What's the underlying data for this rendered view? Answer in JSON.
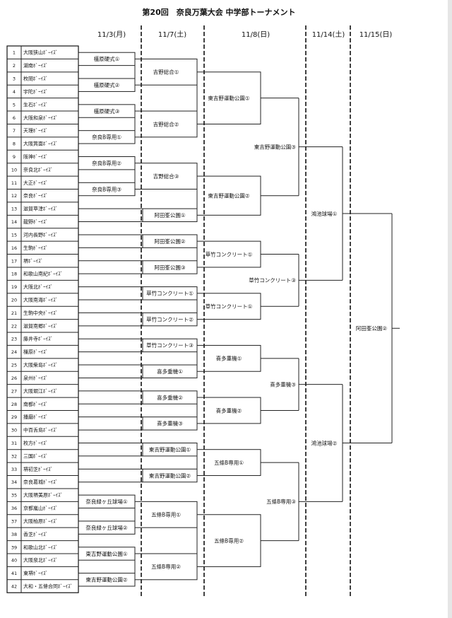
{
  "title": "第20回　奈良万葉大会 中学部トーナメント",
  "dates": [
    "11/3(月)",
    "11/7(土)",
    "11/8(日)",
    "11/14(土)",
    "11/15(日)"
  ],
  "teams": [
    {
      "no": "1",
      "name": "大阪狭山ﾎﾞｰｲｽﾞ"
    },
    {
      "no": "2",
      "name": "湖南ﾎﾞｰｲｽﾞ"
    },
    {
      "no": "3",
      "name": "枚岡ﾎﾞｰｲｽﾞ"
    },
    {
      "no": "4",
      "name": "宇陀ﾎﾞｰｲｽﾞ"
    },
    {
      "no": "5",
      "name": "生石ﾎﾞｰｲｽﾞ"
    },
    {
      "no": "6",
      "name": "大阪和泉ﾎﾞｰｲｽﾞ"
    },
    {
      "no": "7",
      "name": "天理ﾎﾞｰｲｽﾞ"
    },
    {
      "no": "8",
      "name": "大阪箕面ﾎﾞｰｲｽﾞ"
    },
    {
      "no": "9",
      "name": "阪神ﾎﾞｰｲｽﾞ"
    },
    {
      "no": "10",
      "name": "奈良北ﾎﾞｰｲｽﾞ"
    },
    {
      "no": "11",
      "name": "大正ﾎﾞｰｲｽﾞ"
    },
    {
      "no": "12",
      "name": "奈良ﾎﾞｰｲｽﾞ"
    },
    {
      "no": "13",
      "name": "滋賀草津ﾎﾞｰｲｽﾞ"
    },
    {
      "no": "14",
      "name": "龍野ﾎﾞｰｲｽﾞ"
    },
    {
      "no": "15",
      "name": "河内長野ﾎﾞｰｲｽﾞ"
    },
    {
      "no": "16",
      "name": "生駒ﾎﾞｰｲｽﾞ"
    },
    {
      "no": "17",
      "name": "堺ﾎﾞｰｲｽﾞ"
    },
    {
      "no": "18",
      "name": "和歌山南紀ﾎﾞｰｲｽﾞ"
    },
    {
      "no": "19",
      "name": "大阪北ﾎﾞｰｲｽﾞ"
    },
    {
      "no": "20",
      "name": "大阪南海ﾎﾞｰｲｽﾞ"
    },
    {
      "no": "21",
      "name": "生駒中央ﾎﾞｰｲｽﾞ"
    },
    {
      "no": "22",
      "name": "滋賀南郷ﾎﾞｰｲｽﾞ"
    },
    {
      "no": "23",
      "name": "藤井寺ﾎﾞｰｲｽﾞ"
    },
    {
      "no": "24",
      "name": "橿原ﾎﾞｰｲｽﾞ"
    },
    {
      "no": "25",
      "name": "大阪柴島ﾎﾞｰｲｽﾞ"
    },
    {
      "no": "26",
      "name": "泉州ﾎﾞｰｲｽﾞ"
    },
    {
      "no": "27",
      "name": "大阪堀江ﾎﾞｰｲｽﾞ"
    },
    {
      "no": "28",
      "name": "南都ﾎﾞｰｲｽﾞ"
    },
    {
      "no": "29",
      "name": "播磨ﾎﾞｰｲｽﾞ"
    },
    {
      "no": "30",
      "name": "中百舌鳥ﾎﾞｰｲｽﾞ"
    },
    {
      "no": "31",
      "name": "枚方ﾎﾞｰｲｽﾞ"
    },
    {
      "no": "32",
      "name": "三国ﾎﾞｰｲｽﾞ"
    },
    {
      "no": "33",
      "name": "堺初芝ﾎﾞｰｲｽﾞ"
    },
    {
      "no": "34",
      "name": "奈良葛城ﾎﾞｰｲｽﾞ"
    },
    {
      "no": "35",
      "name": "大阪堺美原ﾎﾞｰｲｽﾞ"
    },
    {
      "no": "36",
      "name": "京都嵐山ﾎﾞｰｲｽﾞ"
    },
    {
      "no": "37",
      "name": "大阪柏原ﾎﾞｰｲｽﾞ"
    },
    {
      "no": "38",
      "name": "香芝ﾎﾞｰｲｽﾞ"
    },
    {
      "no": "39",
      "name": "和歌山北ﾎﾞｰｲｽﾞ"
    },
    {
      "no": "40",
      "name": "大阪泉北ﾎﾞｰｲｽﾞ"
    },
    {
      "no": "41",
      "name": "東堺ﾎﾞｰｲｽﾞ"
    },
    {
      "no": "42",
      "name": "大和・五條合同ﾎﾞｰｲｽﾞ"
    }
  ],
  "matches": [
    {
      "id": "a1",
      "round": 1,
      "label": "橿原硬式①",
      "from": [
        1,
        2
      ]
    },
    {
      "id": "a2",
      "round": 1,
      "label": "橿原硬式②",
      "from": [
        3,
        4
      ]
    },
    {
      "id": "a3",
      "round": 1,
      "label": "橿原硬式③",
      "from": [
        5,
        6
      ]
    },
    {
      "id": "a4",
      "round": 1,
      "label": "奈良B専用①",
      "from": [
        7,
        8
      ]
    },
    {
      "id": "a5",
      "round": 1,
      "label": "奈良B専用②",
      "from": [
        9,
        10
      ]
    },
    {
      "id": "a6",
      "round": 1,
      "label": "奈良B専用③",
      "from": [
        11,
        12
      ]
    },
    {
      "id": "a7",
      "round": 1,
      "label": "奈良緑ヶ丘球場①",
      "from": [
        35,
        36
      ]
    },
    {
      "id": "a8",
      "round": 1,
      "label": "奈良緑ヶ丘球場②",
      "from": [
        37,
        38
      ]
    },
    {
      "id": "a9",
      "round": 1,
      "label": "東吉野運動公園①",
      "from": [
        39,
        40
      ]
    },
    {
      "id": "a10",
      "round": 1,
      "label": "東吉野運動公園②",
      "from": [
        41,
        42
      ]
    },
    {
      "id": "b1",
      "round": 2,
      "label": "吉野総合①",
      "from": [
        "a1",
        "a2"
      ]
    },
    {
      "id": "b2",
      "round": 2,
      "label": "吉野総合②",
      "from": [
        "a3",
        "a4"
      ]
    },
    {
      "id": "b3",
      "round": 2,
      "label": "吉野総合③",
      "from": [
        "a5",
        "a6"
      ]
    },
    {
      "id": "b4",
      "round": 2,
      "label": "阿田峯公園①",
      "from": [
        13,
        14
      ]
    },
    {
      "id": "b5",
      "round": 2,
      "label": "阿田峯公園②",
      "from": [
        15,
        16
      ]
    },
    {
      "id": "b6",
      "round": 2,
      "label": "阿田峯公園③",
      "from": [
        17,
        18
      ]
    },
    {
      "id": "b7",
      "round": 2,
      "label": "草竹コンクリート①",
      "from": [
        19,
        20
      ]
    },
    {
      "id": "b8",
      "round": 2,
      "label": "草竹コンクリート②",
      "from": [
        21,
        22
      ]
    },
    {
      "id": "b9",
      "round": 2,
      "label": "草竹コンクリート③",
      "from": [
        23,
        24
      ]
    },
    {
      "id": "b10",
      "round": 2,
      "label": "喜多重機①",
      "from": [
        25,
        26
      ]
    },
    {
      "id": "b11",
      "round": 2,
      "label": "喜多重機②",
      "from": [
        27,
        28
      ]
    },
    {
      "id": "b12",
      "round": 2,
      "label": "喜多重機③",
      "from": [
        29,
        30
      ]
    },
    {
      "id": "b13",
      "round": 2,
      "label": "東吉野運動公園①",
      "from": [
        31,
        32
      ]
    },
    {
      "id": "b14",
      "round": 2,
      "label": "東吉野運動公園②",
      "from": [
        33,
        34
      ]
    },
    {
      "id": "b15",
      "round": 2,
      "label": "五條B専用①",
      "from": [
        "a7",
        "a8"
      ]
    },
    {
      "id": "b16",
      "round": 2,
      "label": "五條B専用②",
      "from": [
        "a9",
        "a10"
      ]
    },
    {
      "id": "c1",
      "round": 3,
      "label": "東吉野運動公園①",
      "from": [
        "b1",
        "b2"
      ]
    },
    {
      "id": "c2",
      "round": 3,
      "label": "東吉野運動公園②",
      "from": [
        "b3",
        "b4"
      ]
    },
    {
      "id": "c3",
      "round": 3,
      "label": "草竹コンクリート①",
      "from": [
        "b5",
        "b6"
      ]
    },
    {
      "id": "c4",
      "round": 3,
      "label": "草竹コンクリート①",
      "from": [
        "b7",
        "b8"
      ]
    },
    {
      "id": "c5",
      "round": 3,
      "label": "喜多重機①",
      "from": [
        "b9",
        "b10"
      ]
    },
    {
      "id": "c6",
      "round": 3,
      "label": "喜多重機②",
      "from": [
        "b11",
        "b12"
      ]
    },
    {
      "id": "c7",
      "round": 3,
      "label": "五條B専用①",
      "from": [
        "b13",
        "b14"
      ]
    },
    {
      "id": "c8",
      "round": 3,
      "label": "五條B専用②",
      "from": [
        "b15",
        "b16"
      ]
    },
    {
      "id": "d1",
      "round": 4,
      "label": "東吉野運動公園③",
      "from": [
        "c1",
        "c2"
      ]
    },
    {
      "id": "d2",
      "round": 4,
      "label": "草竹コンクリート③",
      "from": [
        "c3",
        "c4"
      ]
    },
    {
      "id": "d3",
      "round": 4,
      "label": "喜多重機③",
      "from": [
        "c5",
        "c6"
      ]
    },
    {
      "id": "d4",
      "round": 4,
      "label": "五條B専用③",
      "from": [
        "c7",
        "c8"
      ]
    },
    {
      "id": "e1",
      "round": 5,
      "label": "鴻池球場①",
      "from": [
        "d1",
        "d2"
      ]
    },
    {
      "id": "e2",
      "round": 5,
      "label": "鴻池球場②",
      "from": [
        "d3",
        "d4"
      ]
    },
    {
      "id": "f1",
      "round": 6,
      "label": "阿田峯公園②",
      "from": [
        "e1",
        "e2"
      ]
    }
  ]
}
